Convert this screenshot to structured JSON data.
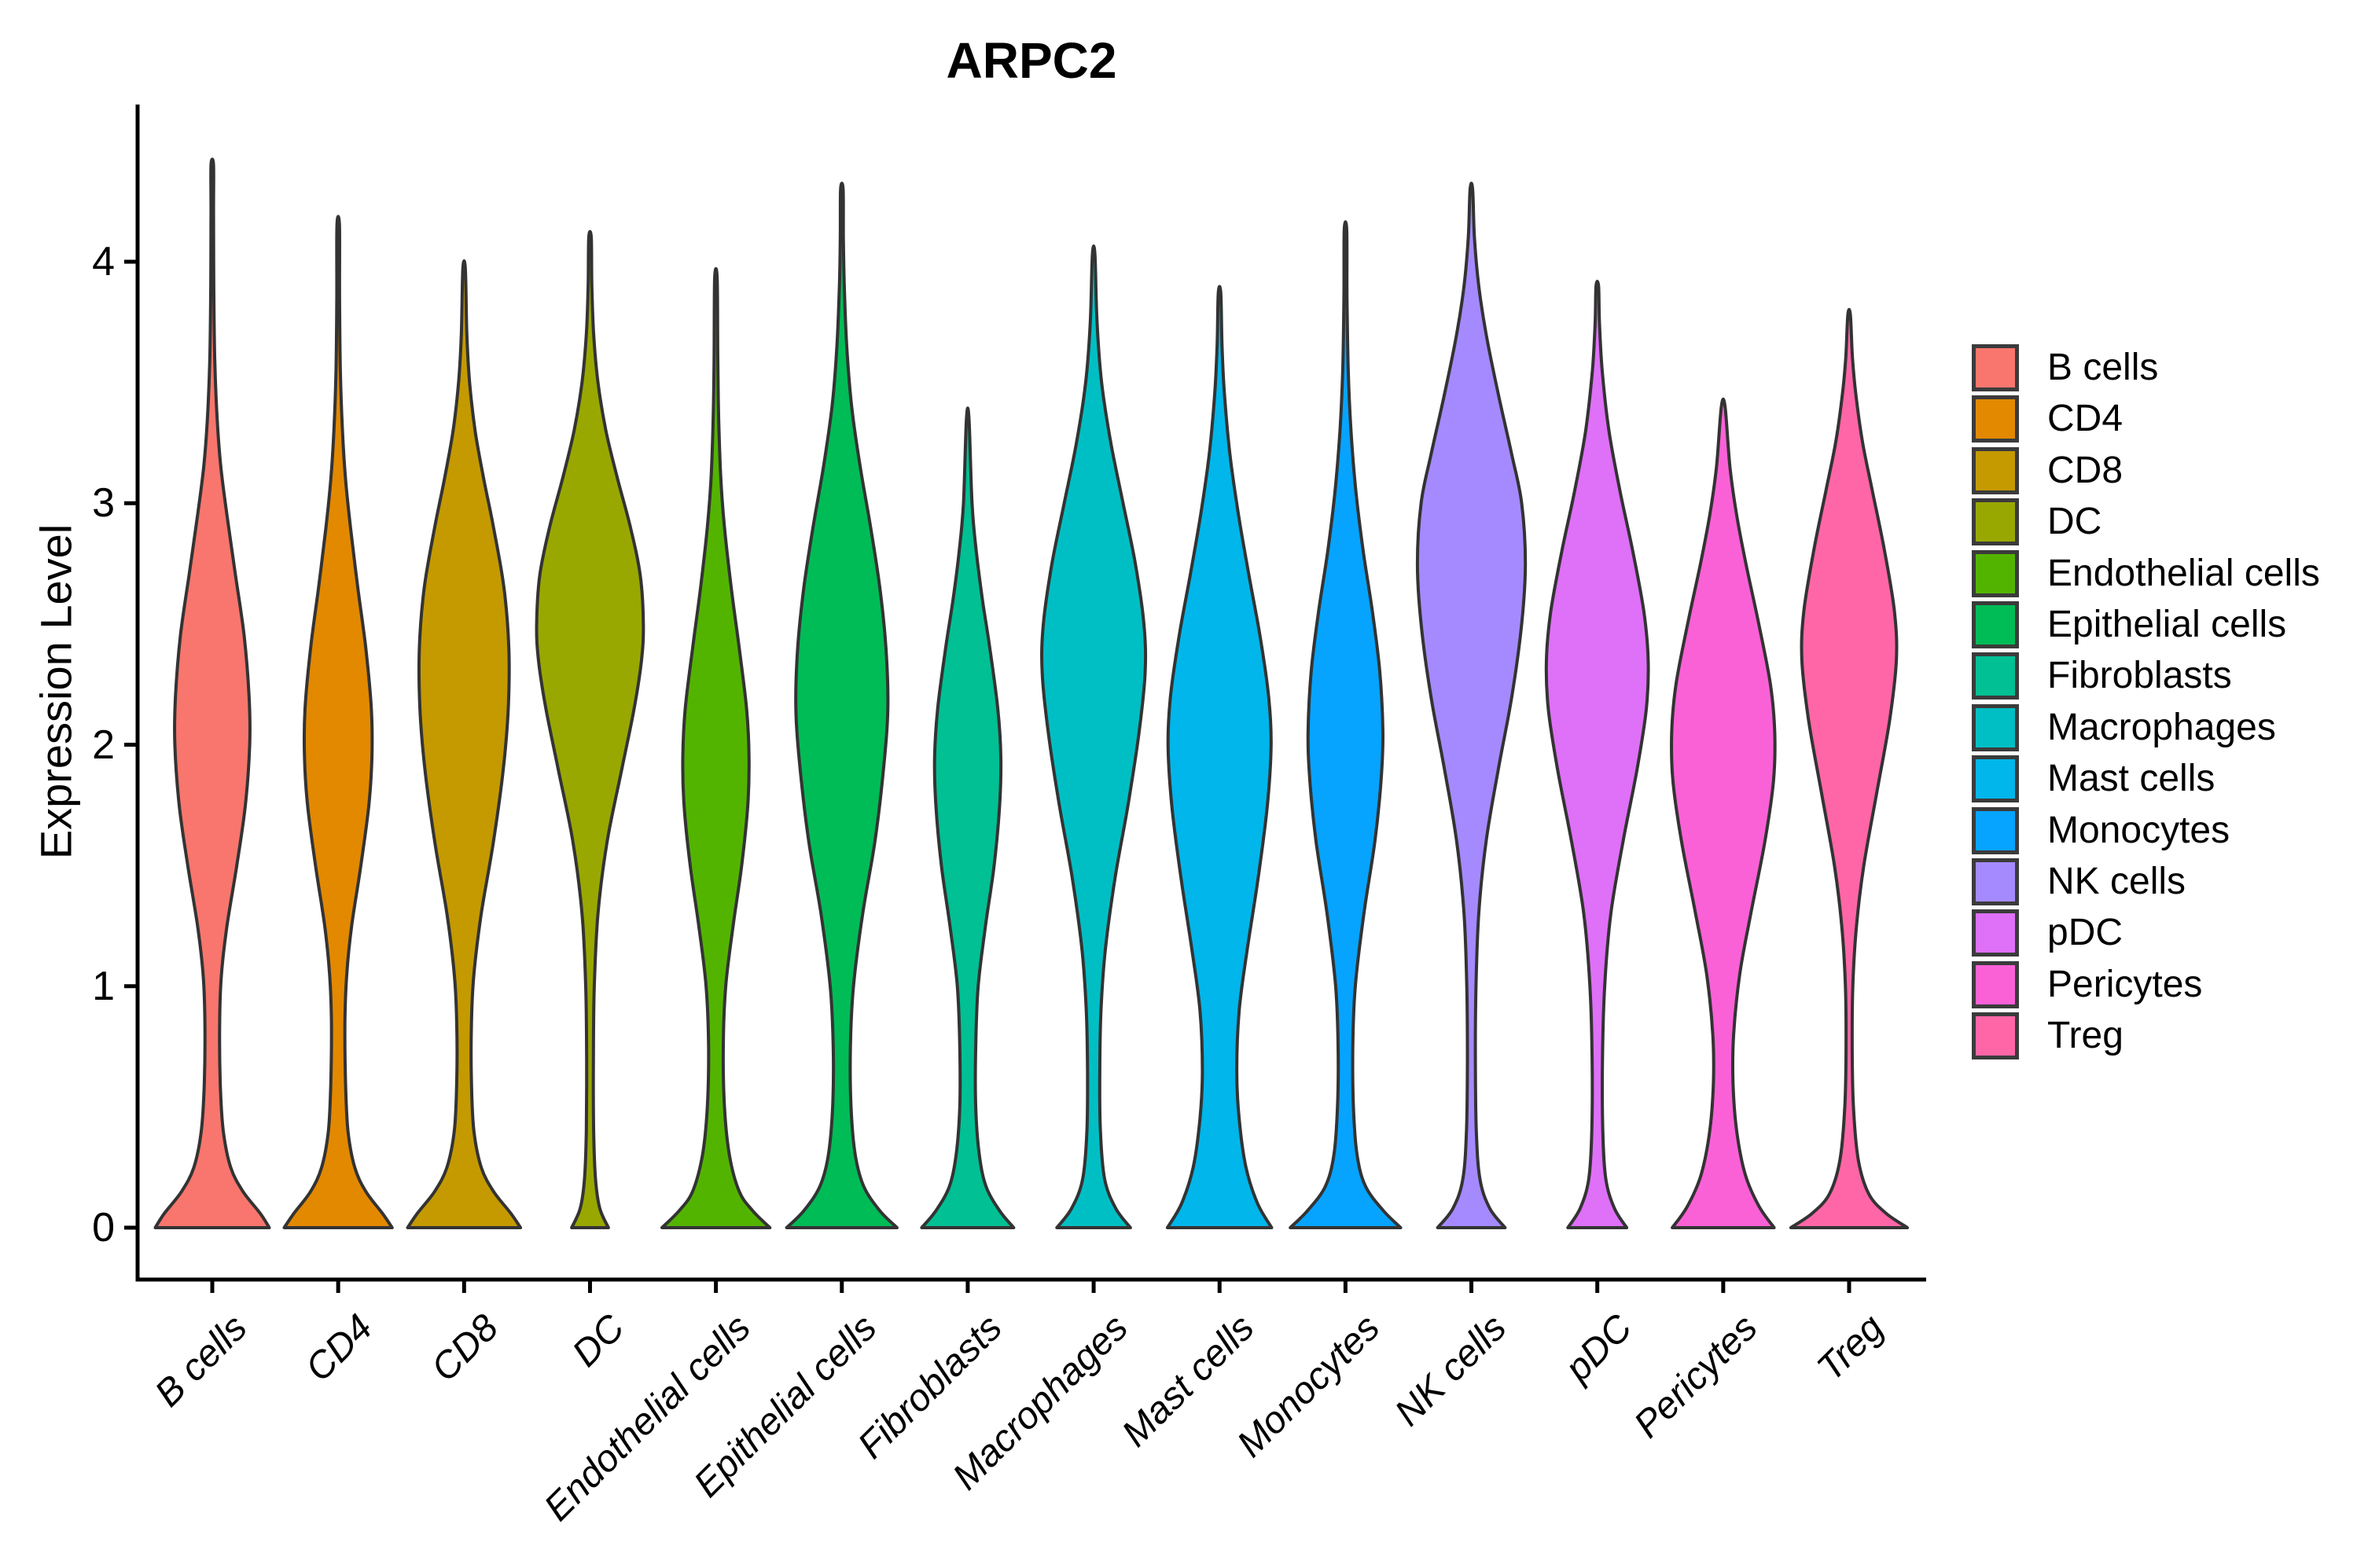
{
  "title": "ARPC2",
  "y_axis": {
    "label": "Expression Level",
    "tick_labels": [
      "0",
      "1",
      "2",
      "3",
      "4"
    ]
  },
  "x_axis": {
    "tick_labels": [
      "B cells",
      "CD4",
      "CD8",
      "DC",
      "Endothelial cells",
      "Epithelial cells",
      "Fibroblasts",
      "Macrophages",
      "Mast cells",
      "Monocytes",
      "NK cells",
      "pDC",
      "Pericytes",
      "Treg"
    ]
  },
  "style_colors": {
    "violin_outline": "#333333",
    "axis": "#000000",
    "background": "#ffffff",
    "legend_swatch_border": "#3b3b3b"
  },
  "chart_data": {
    "type": "violin",
    "title": "ARPC2",
    "xlabel": "",
    "ylabel": "Expression Level",
    "ylim": [
      0,
      4.65
    ],
    "y_ticks": [
      0,
      1,
      2,
      3,
      4
    ],
    "grid": false,
    "legend_position": "right",
    "categories": [
      "B cells",
      "CD4",
      "CD8",
      "DC",
      "Endothelial cells",
      "Epithelial cells",
      "Fibroblasts",
      "Macrophages",
      "Mast cells",
      "Monocytes",
      "NK cells",
      "pDC",
      "Pericytes",
      "Treg"
    ],
    "series": [
      {
        "name": "B cells",
        "color": "#F8766D",
        "max_expression": 4.4,
        "mode_expression": 2.05,
        "density_profile": [
          [
            0,
            0.93
          ],
          [
            0.06,
            0.78
          ],
          [
            0.15,
            0.5
          ],
          [
            0.25,
            0.3
          ],
          [
            0.4,
            0.18
          ],
          [
            0.6,
            0.13
          ],
          [
            0.85,
            0.12
          ],
          [
            1.05,
            0.15
          ],
          [
            1.25,
            0.24
          ],
          [
            1.5,
            0.4
          ],
          [
            1.75,
            0.54
          ],
          [
            2.0,
            0.61
          ],
          [
            2.2,
            0.6
          ],
          [
            2.45,
            0.52
          ],
          [
            2.7,
            0.38
          ],
          [
            2.95,
            0.24
          ],
          [
            3.15,
            0.14
          ],
          [
            3.35,
            0.08
          ],
          [
            3.6,
            0.04
          ],
          [
            3.9,
            0.025
          ],
          [
            4.2,
            0.02
          ],
          [
            4.4,
            0.012
          ]
        ]
      },
      {
        "name": "CD4",
        "color": "#E38900",
        "max_expression": 4.15,
        "mode_expression": 1.95,
        "density_profile": [
          [
            0,
            0.88
          ],
          [
            0.06,
            0.72
          ],
          [
            0.15,
            0.45
          ],
          [
            0.25,
            0.27
          ],
          [
            0.4,
            0.16
          ],
          [
            0.6,
            0.12
          ],
          [
            0.85,
            0.11
          ],
          [
            1.05,
            0.14
          ],
          [
            1.25,
            0.22
          ],
          [
            1.5,
            0.37
          ],
          [
            1.75,
            0.5
          ],
          [
            1.95,
            0.55
          ],
          [
            2.15,
            0.54
          ],
          [
            2.4,
            0.45
          ],
          [
            2.65,
            0.32
          ],
          [
            2.9,
            0.2
          ],
          [
            3.1,
            0.12
          ],
          [
            3.3,
            0.07
          ],
          [
            3.55,
            0.035
          ],
          [
            3.85,
            0.022
          ],
          [
            4.15,
            0.012
          ]
        ]
      },
      {
        "name": "CD8",
        "color": "#C49A00",
        "max_expression": 3.97,
        "mode_expression": 2.4,
        "density_profile": [
          [
            0,
            0.92
          ],
          [
            0.06,
            0.76
          ],
          [
            0.15,
            0.48
          ],
          [
            0.25,
            0.28
          ],
          [
            0.4,
            0.16
          ],
          [
            0.6,
            0.12
          ],
          [
            0.85,
            0.12
          ],
          [
            1.05,
            0.16
          ],
          [
            1.3,
            0.28
          ],
          [
            1.6,
            0.48
          ],
          [
            1.9,
            0.64
          ],
          [
            2.15,
            0.72
          ],
          [
            2.4,
            0.73
          ],
          [
            2.65,
            0.65
          ],
          [
            2.9,
            0.48
          ],
          [
            3.1,
            0.32
          ],
          [
            3.3,
            0.18
          ],
          [
            3.5,
            0.09
          ],
          [
            3.7,
            0.045
          ],
          [
            3.97,
            0.015
          ]
        ]
      },
      {
        "name": "DC",
        "color": "#99A800",
        "max_expression": 4.1,
        "mode_expression": 2.5,
        "density_profile": [
          [
            0,
            0.3
          ],
          [
            0.08,
            0.16
          ],
          [
            0.2,
            0.09
          ],
          [
            0.4,
            0.06
          ],
          [
            0.7,
            0.055
          ],
          [
            1.0,
            0.07
          ],
          [
            1.3,
            0.13
          ],
          [
            1.6,
            0.28
          ],
          [
            1.9,
            0.52
          ],
          [
            2.15,
            0.72
          ],
          [
            2.35,
            0.84
          ],
          [
            2.5,
            0.87
          ],
          [
            2.7,
            0.82
          ],
          [
            2.9,
            0.66
          ],
          [
            3.1,
            0.45
          ],
          [
            3.3,
            0.26
          ],
          [
            3.5,
            0.13
          ],
          [
            3.7,
            0.06
          ],
          [
            3.9,
            0.03
          ],
          [
            4.1,
            0.015
          ]
        ]
      },
      {
        "name": "Endothelial cells",
        "color": "#53B400",
        "max_expression": 3.93,
        "mode_expression": 1.9,
        "density_profile": [
          [
            0,
            0.88
          ],
          [
            0.07,
            0.6
          ],
          [
            0.15,
            0.38
          ],
          [
            0.3,
            0.22
          ],
          [
            0.5,
            0.14
          ],
          [
            0.75,
            0.12
          ],
          [
            1.0,
            0.16
          ],
          [
            1.25,
            0.28
          ],
          [
            1.5,
            0.42
          ],
          [
            1.75,
            0.52
          ],
          [
            1.95,
            0.54
          ],
          [
            2.15,
            0.5
          ],
          [
            2.4,
            0.38
          ],
          [
            2.65,
            0.25
          ],
          [
            2.9,
            0.14
          ],
          [
            3.1,
            0.08
          ],
          [
            3.35,
            0.045
          ],
          [
            3.6,
            0.03
          ],
          [
            3.93,
            0.015
          ]
        ]
      },
      {
        "name": "Epithelial cells",
        "color": "#00BC56",
        "max_expression": 4.3,
        "mode_expression": 2.15,
        "density_profile": [
          [
            0,
            0.9
          ],
          [
            0.07,
            0.62
          ],
          [
            0.17,
            0.36
          ],
          [
            0.3,
            0.22
          ],
          [
            0.5,
            0.15
          ],
          [
            0.75,
            0.14
          ],
          [
            1.0,
            0.19
          ],
          [
            1.3,
            0.34
          ],
          [
            1.6,
            0.54
          ],
          [
            1.9,
            0.68
          ],
          [
            2.15,
            0.75
          ],
          [
            2.4,
            0.72
          ],
          [
            2.65,
            0.62
          ],
          [
            2.9,
            0.47
          ],
          [
            3.15,
            0.3
          ],
          [
            3.4,
            0.16
          ],
          [
            3.65,
            0.08
          ],
          [
            3.9,
            0.04
          ],
          [
            4.1,
            0.025
          ],
          [
            4.3,
            0.012
          ]
        ]
      },
      {
        "name": "Fibroblasts",
        "color": "#00C094",
        "max_expression": 3.35,
        "mode_expression": 1.95,
        "density_profile": [
          [
            0,
            0.75
          ],
          [
            0.07,
            0.52
          ],
          [
            0.17,
            0.3
          ],
          [
            0.3,
            0.19
          ],
          [
            0.5,
            0.13
          ],
          [
            0.75,
            0.13
          ],
          [
            1.0,
            0.17
          ],
          [
            1.25,
            0.29
          ],
          [
            1.5,
            0.43
          ],
          [
            1.75,
            0.52
          ],
          [
            1.95,
            0.54
          ],
          [
            2.15,
            0.49
          ],
          [
            2.4,
            0.36
          ],
          [
            2.6,
            0.24
          ],
          [
            2.8,
            0.14
          ],
          [
            3.0,
            0.07
          ],
          [
            3.35,
            0.02
          ]
        ]
      },
      {
        "name": "Macrophages",
        "color": "#00BFC4",
        "max_expression": 4.03,
        "mode_expression": 2.3,
        "density_profile": [
          [
            0,
            0.6
          ],
          [
            0.08,
            0.36
          ],
          [
            0.2,
            0.18
          ],
          [
            0.4,
            0.11
          ],
          [
            0.65,
            0.1
          ],
          [
            0.9,
            0.12
          ],
          [
            1.15,
            0.19
          ],
          [
            1.45,
            0.35
          ],
          [
            1.75,
            0.56
          ],
          [
            2.05,
            0.74
          ],
          [
            2.3,
            0.84
          ],
          [
            2.5,
            0.82
          ],
          [
            2.75,
            0.68
          ],
          [
            3.0,
            0.48
          ],
          [
            3.25,
            0.28
          ],
          [
            3.5,
            0.13
          ],
          [
            3.75,
            0.055
          ],
          [
            4.03,
            0.02
          ]
        ]
      },
      {
        "name": "Mast cells",
        "color": "#00B6EB",
        "max_expression": 3.87,
        "mode_expression": 2.0,
        "density_profile": [
          [
            0,
            0.85
          ],
          [
            0.1,
            0.62
          ],
          [
            0.25,
            0.43
          ],
          [
            0.45,
            0.32
          ],
          [
            0.65,
            0.28
          ],
          [
            0.9,
            0.32
          ],
          [
            1.15,
            0.45
          ],
          [
            1.45,
            0.63
          ],
          [
            1.75,
            0.78
          ],
          [
            2.0,
            0.84
          ],
          [
            2.2,
            0.8
          ],
          [
            2.45,
            0.66
          ],
          [
            2.7,
            0.48
          ],
          [
            2.95,
            0.31
          ],
          [
            3.2,
            0.17
          ],
          [
            3.45,
            0.08
          ],
          [
            3.65,
            0.04
          ],
          [
            3.87,
            0.015
          ]
        ]
      },
      {
        "name": "Monocytes",
        "color": "#06A4FF",
        "max_expression": 4.13,
        "mode_expression": 2.05,
        "density_profile": [
          [
            0,
            0.9
          ],
          [
            0.07,
            0.62
          ],
          [
            0.17,
            0.33
          ],
          [
            0.3,
            0.19
          ],
          [
            0.5,
            0.13
          ],
          [
            0.75,
            0.12
          ],
          [
            1.0,
            0.16
          ],
          [
            1.3,
            0.3
          ],
          [
            1.6,
            0.48
          ],
          [
            1.85,
            0.58
          ],
          [
            2.05,
            0.61
          ],
          [
            2.3,
            0.56
          ],
          [
            2.55,
            0.44
          ],
          [
            2.8,
            0.29
          ],
          [
            3.05,
            0.17
          ],
          [
            3.3,
            0.09
          ],
          [
            3.55,
            0.045
          ],
          [
            3.85,
            0.025
          ],
          [
            4.13,
            0.012
          ]
        ]
      },
      {
        "name": "NK cells",
        "color": "#A58AFF",
        "max_expression": 4.3,
        "mode_expression": 2.75,
        "density_profile": [
          [
            0,
            0.55
          ],
          [
            0.08,
            0.3
          ],
          [
            0.2,
            0.14
          ],
          [
            0.4,
            0.08
          ],
          [
            0.7,
            0.065
          ],
          [
            1.0,
            0.075
          ],
          [
            1.3,
            0.12
          ],
          [
            1.6,
            0.24
          ],
          [
            1.9,
            0.44
          ],
          [
            2.2,
            0.66
          ],
          [
            2.5,
            0.82
          ],
          [
            2.75,
            0.88
          ],
          [
            3.0,
            0.82
          ],
          [
            3.2,
            0.66
          ],
          [
            3.45,
            0.44
          ],
          [
            3.7,
            0.24
          ],
          [
            3.9,
            0.12
          ],
          [
            4.1,
            0.05
          ],
          [
            4.3,
            0.018
          ]
        ]
      },
      {
        "name": "pDC",
        "color": "#DF70F8",
        "max_expression": 3.9,
        "mode_expression": 2.3,
        "density_profile": [
          [
            0,
            0.48
          ],
          [
            0.08,
            0.28
          ],
          [
            0.2,
            0.14
          ],
          [
            0.4,
            0.09
          ],
          [
            0.7,
            0.085
          ],
          [
            1.0,
            0.12
          ],
          [
            1.3,
            0.22
          ],
          [
            1.6,
            0.42
          ],
          [
            1.9,
            0.65
          ],
          [
            2.15,
            0.8
          ],
          [
            2.35,
            0.83
          ],
          [
            2.55,
            0.76
          ],
          [
            2.8,
            0.58
          ],
          [
            3.05,
            0.37
          ],
          [
            3.3,
            0.19
          ],
          [
            3.55,
            0.08
          ],
          [
            3.75,
            0.035
          ],
          [
            3.9,
            0.015
          ]
        ]
      },
      {
        "name": "Pericytes",
        "color": "#FB61D7",
        "max_expression": 3.4,
        "mode_expression": 2.0,
        "density_profile": [
          [
            0,
            0.83
          ],
          [
            0.09,
            0.58
          ],
          [
            0.22,
            0.36
          ],
          [
            0.4,
            0.22
          ],
          [
            0.6,
            0.16
          ],
          [
            0.8,
            0.17
          ],
          [
            1.05,
            0.27
          ],
          [
            1.3,
            0.45
          ],
          [
            1.6,
            0.68
          ],
          [
            1.85,
            0.82
          ],
          [
            2.05,
            0.84
          ],
          [
            2.25,
            0.77
          ],
          [
            2.5,
            0.58
          ],
          [
            2.75,
            0.37
          ],
          [
            2.95,
            0.22
          ],
          [
            3.15,
            0.11
          ],
          [
            3.4,
            0.03
          ]
        ]
      },
      {
        "name": "Treg",
        "color": "#FF66A8",
        "max_expression": 3.78,
        "mode_expression": 2.4,
        "density_profile": [
          [
            0,
            0.95
          ],
          [
            0.06,
            0.6
          ],
          [
            0.14,
            0.32
          ],
          [
            0.28,
            0.15
          ],
          [
            0.5,
            0.07
          ],
          [
            0.75,
            0.05
          ],
          [
            1.0,
            0.06
          ],
          [
            1.25,
            0.12
          ],
          [
            1.5,
            0.24
          ],
          [
            1.8,
            0.45
          ],
          [
            2.1,
            0.66
          ],
          [
            2.35,
            0.77
          ],
          [
            2.55,
            0.74
          ],
          [
            2.8,
            0.58
          ],
          [
            3.05,
            0.38
          ],
          [
            3.25,
            0.22
          ],
          [
            3.45,
            0.11
          ],
          [
            3.6,
            0.055
          ],
          [
            3.78,
            0.02
          ]
        ]
      }
    ]
  }
}
